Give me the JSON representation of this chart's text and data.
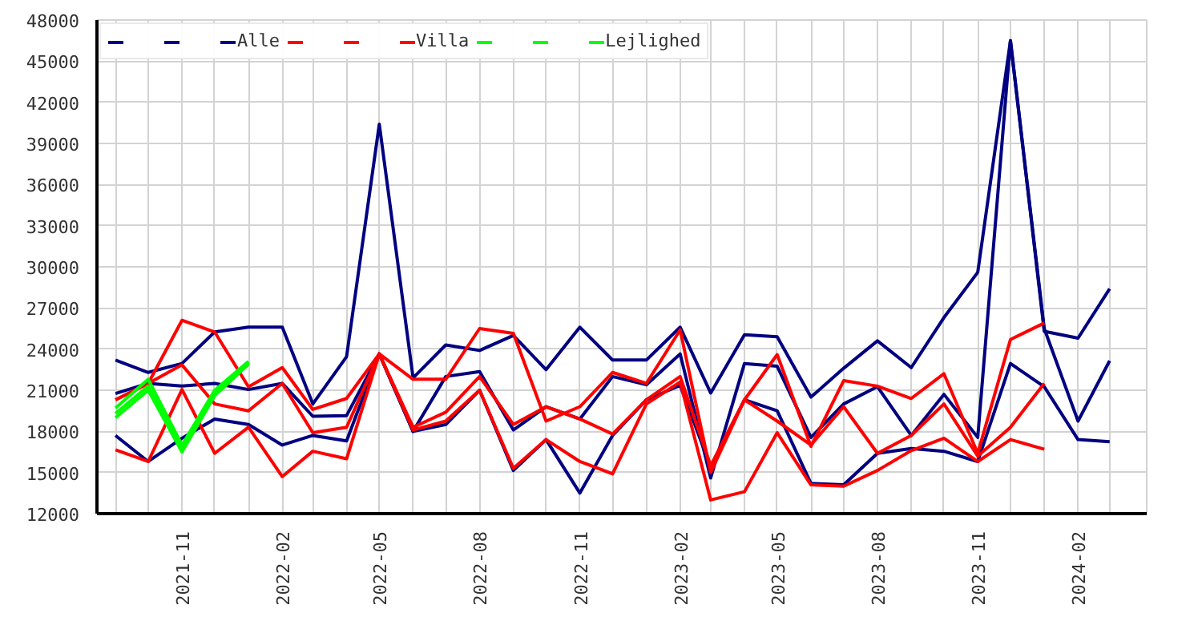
{
  "chart_data": {
    "type": "line",
    "x": [
      "2021-09",
      "2021-10",
      "2021-11",
      "2021-12",
      "2022-01",
      "2022-02",
      "2022-03",
      "2022-04",
      "2022-05",
      "2022-06",
      "2022-07",
      "2022-08",
      "2022-09",
      "2022-10",
      "2022-11",
      "2022-12",
      "2023-01",
      "2023-02",
      "2023-03",
      "2023-04",
      "2023-05",
      "2023-06",
      "2023-07",
      "2023-08",
      "2023-09",
      "2023-10",
      "2023-11",
      "2023-12",
      "2024-01",
      "2024-02",
      "2024-03"
    ],
    "series": [
      {
        "color": "#000080",
        "values": [
          23200,
          22300,
          22950,
          25250,
          25600,
          25600,
          20000,
          23450,
          40400,
          21900,
          24300,
          23900,
          25000,
          22500,
          25600,
          23200,
          23200,
          25600,
          20800,
          25050,
          24900,
          20500,
          22600,
          24600,
          22650,
          26300,
          29600,
          46500,
          25300,
          24800,
          28400
        ]
      },
      {
        "color": "#000080",
        "values": [
          20760,
          21500,
          21300,
          21500,
          21050,
          21500,
          19100,
          19150,
          23650,
          18000,
          22000,
          22360,
          18100,
          19800,
          18900,
          22000,
          21400,
          23650,
          14600,
          22950,
          22750,
          17560,
          20000,
          21260,
          17700,
          20700,
          17560,
          46500,
          25500,
          18750,
          23150
        ]
      },
      {
        "name": "Alle",
        "color": "#000080",
        "values": [
          17700,
          15800,
          17500,
          18900,
          18500,
          17000,
          17700,
          17300,
          23650,
          18000,
          18500,
          21000,
          15150,
          17400,
          13500,
          17700,
          20300,
          21350,
          15400,
          20300,
          19500,
          14200,
          14100,
          16400,
          16750,
          16550,
          15800,
          22950,
          21260,
          17400,
          17250
        ]
      },
      {
        "color": "#ff0000",
        "x": [
          "2021-09",
          "2021-10",
          "2021-11",
          "2021-12",
          "2022-01",
          "2022-02",
          "2022-03",
          "2022-04",
          "2022-05",
          "2022-06",
          "2022-07",
          "2022-08",
          "2022-09",
          "2022-10",
          "2022-11",
          "2022-12",
          "2023-01",
          "2023-02",
          "2023-03",
          "2023-04",
          "2023-05",
          "2023-06",
          "2023-07",
          "2023-08",
          "2023-09",
          "2023-10",
          "2023-11",
          "2023-12",
          "2024-01"
        ],
        "values": [
          20300,
          21500,
          26100,
          25250,
          21250,
          22650,
          19600,
          20400,
          23650,
          21800,
          21800,
          25500,
          25150,
          18750,
          19800,
          22300,
          21500,
          25400,
          15000,
          20300,
          23600,
          16900,
          21700,
          21300,
          20400,
          22200,
          16400,
          24700,
          25900
        ]
      },
      {
        "color": "#ff0000",
        "x": [
          "2021-09",
          "2021-10",
          "2021-11",
          "2021-12",
          "2022-01",
          "2022-02",
          "2022-03",
          "2022-04",
          "2022-05",
          "2022-06",
          "2022-07",
          "2022-08",
          "2022-09",
          "2022-10",
          "2022-11",
          "2022-12",
          "2023-01",
          "2023-02",
          "2023-03",
          "2023-04",
          "2023-05",
          "2023-06",
          "2023-07",
          "2023-08",
          "2023-09",
          "2023-10",
          "2023-11",
          "2023-12",
          "2024-01"
        ],
        "values": [
          20300,
          21500,
          22850,
          20000,
          19500,
          21500,
          17900,
          18300,
          23650,
          18300,
          19400,
          22000,
          18500,
          19800,
          18900,
          17800,
          20300,
          22000,
          15500,
          20300,
          18750,
          17000,
          19800,
          16400,
          17700,
          20000,
          16200,
          18300,
          21500
        ]
      },
      {
        "name": "Villa",
        "color": "#ff0000",
        "x": [
          "2021-09",
          "2021-10",
          "2021-11",
          "2021-12",
          "2022-01",
          "2022-02",
          "2022-03",
          "2022-04",
          "2022-05",
          "2022-06",
          "2022-07",
          "2022-08",
          "2022-09",
          "2022-10",
          "2022-11",
          "2022-12",
          "2023-01",
          "2023-02",
          "2023-03",
          "2023-04",
          "2023-05",
          "2023-06",
          "2023-07",
          "2023-08",
          "2023-09",
          "2023-10",
          "2023-11",
          "2023-12",
          "2024-01"
        ],
        "values": [
          16650,
          15800,
          21050,
          16400,
          18300,
          14700,
          16550,
          16000,
          23650,
          18100,
          18750,
          21000,
          15300,
          17400,
          15800,
          14900,
          20000,
          21600,
          13000,
          13600,
          17900,
          14100,
          14000,
          15150,
          16600,
          17500,
          15800,
          17400,
          16700
        ]
      },
      {
        "color": "#00ff00",
        "x": [
          "2021-09",
          "2021-10",
          "2021-11",
          "2021-12",
          "2022-01"
        ],
        "values": [
          19700,
          21800,
          17000,
          21000,
          23100
        ]
      },
      {
        "color": "#00ff00",
        "x": [
          "2021-09",
          "2021-10",
          "2021-11",
          "2021-12",
          "2022-01"
        ],
        "values": [
          19300,
          21300,
          16700,
          20800,
          23000
        ]
      },
      {
        "name": "Lejlighed",
        "color": "#00ff00",
        "x": [
          "2021-09",
          "2021-10",
          "2021-11",
          "2021-12",
          "2022-01"
        ],
        "values": [
          19000,
          21000,
          16500,
          20600,
          22900
        ]
      }
    ],
    "xlim": [
      "2021-08-15",
      "2024-04-04"
    ],
    "xticks": [
      {
        "value": "2021-11",
        "label": "2021-11"
      },
      {
        "value": "2022-02",
        "label": "2022-02"
      },
      {
        "value": "2022-05",
        "label": "2022-05"
      },
      {
        "value": "2022-08",
        "label": "2022-08"
      },
      {
        "value": "2022-11",
        "label": "2022-11"
      },
      {
        "value": "2023-02",
        "label": "2023-02"
      },
      {
        "value": "2023-05",
        "label": "2023-05"
      },
      {
        "value": "2023-08",
        "label": "2023-08"
      },
      {
        "value": "2023-11",
        "label": "2023-11"
      },
      {
        "value": "2024-02",
        "label": "2024-02"
      }
    ],
    "ylim": [
      12000,
      48000
    ],
    "yticks": [
      12000,
      15000,
      18000,
      21000,
      24000,
      27000,
      30000,
      33000,
      36000,
      39000,
      42000,
      45000,
      48000
    ],
    "grid": true,
    "legend": "top left",
    "marker": "none",
    "line_style": "solid"
  }
}
